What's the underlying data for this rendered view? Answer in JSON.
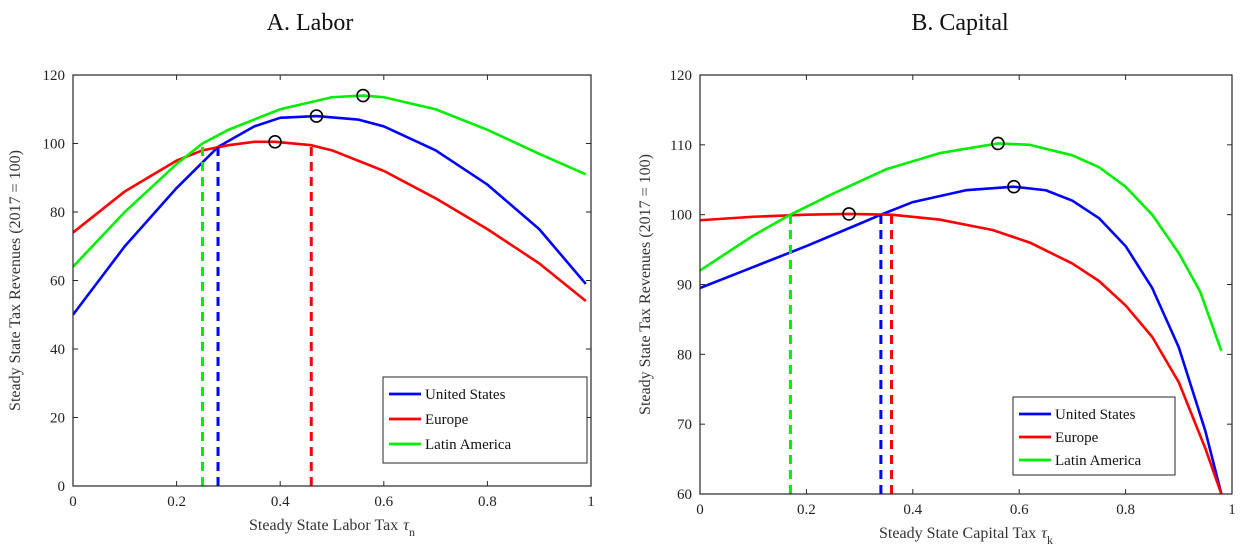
{
  "chart_data": [
    {
      "type": "line",
      "title": "A. Labor",
      "xlabel": "Steady State Labor Tax",
      "xlabel_symbol": "τ",
      "xlabel_sub": "n",
      "ylabel": "Steady State Tax Revenues (2017 = 100)",
      "xlim": [
        0,
        1
      ],
      "ylim": [
        0,
        120
      ],
      "xticks": [
        0,
        0.2,
        0.4,
        0.6,
        0.8,
        1
      ],
      "xtick_labels": [
        "0",
        "0.2",
        "0.4",
        "0.6",
        "0.8",
        "1"
      ],
      "yticks": [
        0,
        20,
        40,
        60,
        80,
        100,
        120
      ],
      "ytick_labels": [
        "0",
        "20",
        "40",
        "60",
        "80",
        "100",
        "120"
      ],
      "grid": false,
      "legend_position": "bottom-right",
      "series": [
        {
          "name": "United States",
          "color": "#0000ff",
          "x": [
            0,
            0.1,
            0.2,
            0.28,
            0.35,
            0.4,
            0.47,
            0.55,
            0.6,
            0.7,
            0.8,
            0.9,
            0.99
          ],
          "y": [
            50,
            70,
            87,
            99,
            105,
            107.5,
            108,
            107,
            105,
            98,
            88,
            75,
            59
          ],
          "peak": [
            0.47,
            108
          ],
          "dashed_x": 0.28
        },
        {
          "name": "Europe",
          "color": "#ff0000",
          "x": [
            0,
            0.1,
            0.2,
            0.25,
            0.3,
            0.35,
            0.39,
            0.46,
            0.5,
            0.6,
            0.7,
            0.8,
            0.9,
            0.99
          ],
          "y": [
            74,
            86,
            95,
            98,
            99.5,
            100.5,
            100.5,
            99.5,
            98,
            92,
            84,
            75,
            65,
            54
          ],
          "peak": [
            0.39,
            100.5
          ],
          "dashed_x": 0.46
        },
        {
          "name": "Latin America",
          "color": "#00ee00",
          "x": [
            0,
            0.1,
            0.2,
            0.25,
            0.3,
            0.4,
            0.5,
            0.56,
            0.6,
            0.7,
            0.8,
            0.9,
            0.99
          ],
          "y": [
            64,
            80,
            94,
            100,
            104,
            110,
            113.5,
            114,
            113.5,
            110,
            104,
            97,
            91
          ],
          "peak": [
            0.56,
            114
          ],
          "dashed_x": 0.25
        }
      ]
    },
    {
      "type": "line",
      "title": "B. Capital",
      "xlabel": "Steady State Capital Tax",
      "xlabel_symbol": "τ",
      "xlabel_sub": "k",
      "ylabel": "Steady State Tax Revenues (2017 = 100)",
      "xlim": [
        0,
        1
      ],
      "ylim": [
        60,
        120
      ],
      "xticks": [
        0,
        0.2,
        0.4,
        0.6,
        0.8,
        1
      ],
      "xtick_labels": [
        "0",
        "0.2",
        "0.4",
        "0.6",
        "0.8",
        "1"
      ],
      "yticks": [
        60,
        70,
        80,
        90,
        100,
        110,
        120
      ],
      "ytick_labels": [
        "60",
        "70",
        "80",
        "90",
        "100",
        "110",
        "120"
      ],
      "grid": false,
      "legend_position": "bottom-right",
      "series": [
        {
          "name": "United States",
          "color": "#0000ff",
          "x": [
            0,
            0.1,
            0.2,
            0.3,
            0.34,
            0.4,
            0.5,
            0.59,
            0.65,
            0.7,
            0.75,
            0.8,
            0.85,
            0.9,
            0.95,
            0.98
          ],
          "y": [
            89.5,
            92.5,
            95.5,
            98.7,
            100,
            101.8,
            103.5,
            104,
            103.5,
            102,
            99.5,
            95.5,
            89.5,
            81,
            69,
            60
          ],
          "peak": [
            0.59,
            104
          ],
          "dashed_x": 0.34
        },
        {
          "name": "Europe",
          "color": "#ff0000",
          "x": [
            0,
            0.1,
            0.2,
            0.28,
            0.36,
            0.45,
            0.55,
            0.62,
            0.7,
            0.75,
            0.8,
            0.85,
            0.9,
            0.95,
            0.98
          ],
          "y": [
            99.2,
            99.7,
            100,
            100.1,
            100,
            99.3,
            97.8,
            96,
            93,
            90.5,
            87,
            82.5,
            76,
            66.5,
            60
          ],
          "peak": [
            0.28,
            100.1
          ],
          "dashed_x": 0.36
        },
        {
          "name": "Latin America",
          "color": "#00ee00",
          "x": [
            0,
            0.1,
            0.17,
            0.25,
            0.35,
            0.45,
            0.56,
            0.62,
            0.7,
            0.75,
            0.8,
            0.85,
            0.9,
            0.94,
            0.98
          ],
          "y": [
            92,
            97,
            100,
            103,
            106.5,
            108.8,
            110.2,
            110,
            108.5,
            106.8,
            104,
            100,
            94.5,
            89,
            80.5
          ],
          "peak": [
            0.56,
            110.2
          ],
          "dashed_x": 0.17
        }
      ]
    }
  ]
}
